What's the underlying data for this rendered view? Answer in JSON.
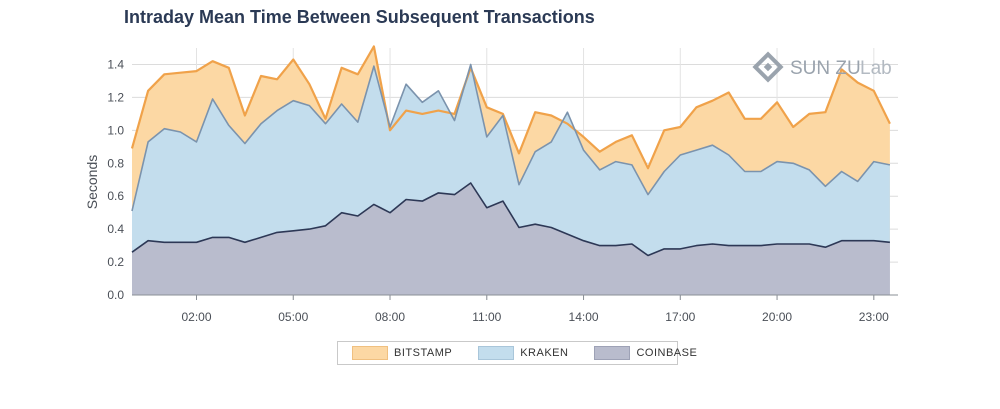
{
  "chart_data": {
    "type": "area",
    "title": "Intraday Mean Time Between Subsequent Transactions",
    "xlabel": "",
    "ylabel": "Seconds",
    "ylim": [
      0,
      1.5
    ],
    "yticks": [
      "0.0",
      "0.2",
      "0.4",
      "0.6",
      "0.8",
      "1.0",
      "1.2",
      "1.4"
    ],
    "xticks": [
      "02:00",
      "05:00",
      "08:00",
      "11:00",
      "14:00",
      "17:00",
      "20:00",
      "23:00"
    ],
    "x_start_hour": 0,
    "x_end_hour": 23.75,
    "x_step_hours": 0.5,
    "grid": true,
    "legend_position": "bottom",
    "series": [
      {
        "name": "BITSTAMP",
        "fill": "#fcd8a4",
        "stroke": "#f0a24a",
        "values": [
          0.89,
          1.24,
          1.34,
          1.35,
          1.36,
          1.42,
          1.38,
          1.09,
          1.33,
          1.31,
          1.43,
          1.28,
          1.07,
          1.38,
          1.34,
          1.51,
          1.0,
          1.12,
          1.1,
          1.12,
          1.1,
          1.38,
          1.14,
          1.1,
          0.86,
          1.11,
          1.09,
          1.04,
          0.96,
          0.87,
          0.93,
          0.97,
          0.77,
          1.0,
          1.02,
          1.14,
          1.18,
          1.23,
          1.07,
          1.07,
          1.17,
          1.02,
          1.1,
          1.11,
          1.37,
          1.29,
          1.24,
          1.04
        ]
      },
      {
        "name": "KRAKEN",
        "fill": "#c3dded",
        "stroke": "#7b93ad",
        "values": [
          0.51,
          0.93,
          1.01,
          0.99,
          0.93,
          1.19,
          1.03,
          0.92,
          1.04,
          1.12,
          1.18,
          1.15,
          1.04,
          1.16,
          1.05,
          1.39,
          1.02,
          1.28,
          1.17,
          1.24,
          1.06,
          1.4,
          0.96,
          1.09,
          0.67,
          0.87,
          0.93,
          1.11,
          0.88,
          0.76,
          0.81,
          0.79,
          0.61,
          0.75,
          0.85,
          0.88,
          0.91,
          0.85,
          0.75,
          0.75,
          0.81,
          0.8,
          0.76,
          0.66,
          0.75,
          0.69,
          0.81,
          0.79
        ]
      },
      {
        "name": "COINBASE",
        "fill": "#b9bccd",
        "stroke": "#2d3856",
        "values": [
          0.26,
          0.33,
          0.32,
          0.32,
          0.32,
          0.35,
          0.35,
          0.32,
          0.35,
          0.38,
          0.39,
          0.4,
          0.42,
          0.5,
          0.48,
          0.55,
          0.5,
          0.58,
          0.57,
          0.62,
          0.61,
          0.68,
          0.53,
          0.57,
          0.41,
          0.43,
          0.41,
          0.37,
          0.33,
          0.3,
          0.3,
          0.31,
          0.24,
          0.28,
          0.28,
          0.3,
          0.31,
          0.3,
          0.3,
          0.3,
          0.31,
          0.31,
          0.31,
          0.29,
          0.33,
          0.33,
          0.33,
          0.32
        ]
      }
    ]
  },
  "logo": {
    "text": "SUN ZU",
    "suffix": "Lab",
    "icon": "sunzu-logo-icon"
  }
}
